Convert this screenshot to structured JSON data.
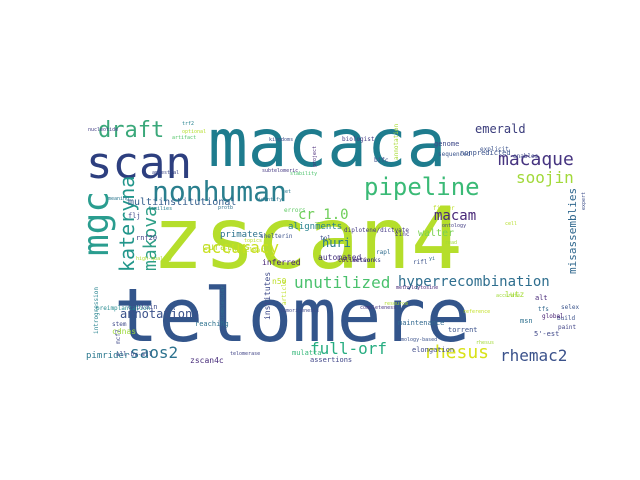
{
  "cloud": {
    "words": [
      {
        "text": "zscan4",
        "color": "#b5de2b"
      },
      {
        "text": "macaca",
        "color": "#1e7c8e"
      },
      {
        "text": "telomere",
        "color": "#33558b"
      },
      {
        "text": "scan",
        "color": "#2d3f7f"
      },
      {
        "text": "mgc",
        "color": "#2a9d8f"
      },
      {
        "text": "nonhuman",
        "color": "#2a7f8e"
      },
      {
        "text": "pipeline",
        "color": "#3aba76"
      },
      {
        "text": "draft",
        "color": "#3aa87a"
      },
      {
        "text": "makova",
        "color": "#2f9f87"
      },
      {
        "text": "kateryna",
        "color": "#22968b"
      },
      {
        "text": "macaque",
        "color": "#463480"
      },
      {
        "text": "soojin",
        "color": "#a2d93a"
      },
      {
        "text": "emerald",
        "color": "#3b3d7c"
      },
      {
        "text": "misassemblies",
        "color": "#31688e"
      },
      {
        "text": "accuracy",
        "color": "#c9e020"
      },
      {
        "text": "full-orf",
        "color": "#27ad81"
      },
      {
        "text": "rhesus",
        "color": "#d8e219"
      },
      {
        "text": "rhemac2",
        "color": "#3b528b"
      },
      {
        "text": "saos2",
        "color": "#2c728e"
      },
      {
        "text": "unutilized",
        "color": "#4ac16d"
      },
      {
        "text": "hyperrecombination",
        "color": "#2e6e8e"
      },
      {
        "text": "macam",
        "color": "#482878"
      },
      {
        "text": "huri",
        "color": "#2a798e"
      },
      {
        "text": "cr_1.0",
        "color": "#6ece58"
      },
      {
        "text": "annotations",
        "color": "#3b528b"
      },
      {
        "text": "curators",
        "color": "#b8de29"
      },
      {
        "text": "multiinstitutional",
        "color": "#355f8d"
      },
      {
        "text": "primates",
        "color": "#2c728e"
      },
      {
        "text": "alignments",
        "color": "#26828e"
      },
      {
        "text": "walter",
        "color": "#7ad151"
      },
      {
        "text": "automated",
        "color": "#46327e"
      },
      {
        "text": "zscan4c",
        "color": "#472c7a"
      },
      {
        "text": "pimrider",
        "color": "#2a788e"
      },
      {
        "text": "cdnas",
        "color": "#9dd93b"
      },
      {
        "text": "inferred",
        "color": "#482475"
      },
      {
        "text": "institutes",
        "color": "#3e4a89"
      },
      {
        "text": "n50",
        "color": "#bddf26"
      },
      {
        "text": "explain",
        "color": "#3e4c8a"
      },
      {
        "text": "reaching",
        "color": "#2d718e"
      },
      {
        "text": "assertions",
        "color": "#404688"
      },
      {
        "text": "mulatta",
        "color": "#35b779"
      },
      {
        "text": "elongation",
        "color": "#3e4989"
      },
      {
        "text": "maintenance",
        "color": "#31688e"
      },
      {
        "text": "torrent",
        "color": "#3b528b"
      },
      {
        "text": "collection",
        "color": "#471365"
      },
      {
        "text": "diplotene/dictyate",
        "color": "#443983"
      },
      {
        "text": "networks",
        "color": "#414487"
      },
      {
        "text": "5'-est",
        "color": "#3f4788"
      },
      {
        "text": "lutz",
        "color": "#a5db36"
      },
      {
        "text": "alt",
        "color": "#482979"
      },
      {
        "text": "msn",
        "color": "#2d708e"
      },
      {
        "text": "genome",
        "color": "#3e4989"
      },
      {
        "text": "nonpredicted",
        "color": "#3b528b"
      },
      {
        "text": "biologist",
        "color": "#443a83"
      },
      {
        "text": "stability",
        "color": "#4cc26c"
      },
      {
        "text": "flj",
        "color": "#3f4788"
      },
      {
        "text": "rnf20",
        "color": "#414487"
      },
      {
        "text": "errors",
        "color": "#5ec962"
      },
      {
        "text": "zinc",
        "color": "#453781"
      },
      {
        "text": "rapl",
        "color": "#2f6c8e"
      },
      {
        "text": "yi",
        "color": "#2f6b8e"
      },
      {
        "text": "rifl",
        "color": "#3b528b"
      },
      {
        "text": "build",
        "color": "#3b518b"
      },
      {
        "text": "paint",
        "color": "#414487"
      },
      {
        "text": "global",
        "color": "#482173"
      },
      {
        "text": "tfs",
        "color": "#31688e"
      },
      {
        "text": "selex",
        "color": "#3a538b"
      },
      {
        "text": "enables",
        "color": "#3f4889"
      },
      {
        "text": "bifc",
        "color": "#3d4d8a"
      },
      {
        "text": "explicit",
        "color": "#3b528b"
      },
      {
        "text": "sequenced",
        "color": "#3a548c"
      },
      {
        "text": "finger",
        "color": "#bddf26"
      },
      {
        "text": "expert",
        "color": "#3d4e8a"
      },
      {
        "text": "methylcytosine",
        "color": "#482677"
      },
      {
        "text": "nucleotide",
        "color": "#433e85"
      },
      {
        "text": "trf2",
        "color": "#26828e"
      },
      {
        "text": "optional",
        "color": "#b5de2b"
      },
      {
        "text": "artifact",
        "color": "#54c568"
      },
      {
        "text": "kingdoms",
        "color": "#3d4e8a"
      },
      {
        "text": "project",
        "color": "#482878"
      },
      {
        "text": "annotation",
        "color": "#a8db34"
      },
      {
        "text": "subtelomeric",
        "color": "#453882"
      },
      {
        "text": "stem",
        "color": "#3e4989"
      },
      {
        "text": "mcf7",
        "color": "#3e4989"
      },
      {
        "text": "introgression",
        "color": "#26828e"
      },
      {
        "text": "preimplantation",
        "color": "#23898e"
      },
      {
        "text": "all-by-all",
        "color": "#3e4a89"
      },
      {
        "text": "telomerase",
        "color": "#414487"
      },
      {
        "text": "cytonuclear",
        "color": "#c0df25"
      },
      {
        "text": "accurate",
        "color": "#a0da39"
      },
      {
        "text": "rhesus",
        "color": "#a2da37"
      },
      {
        "text": "reference",
        "color": "#c2df23"
      },
      {
        "text": "resource",
        "color": "#b2dd2d"
      },
      {
        "text": "homology-based",
        "color": "#3b528b"
      },
      {
        "text": "completeness",
        "color": "#463480"
      },
      {
        "text": "biomolecular",
        "color": "#2d708e"
      },
      {
        "text": "high-quality",
        "color": "#b0dd2f"
      },
      {
        "text": "meaning",
        "color": "#2a768e"
      },
      {
        "text": "topics",
        "color": "#bddf26"
      },
      {
        "text": "shelterin",
        "color": "#3b528b"
      },
      {
        "text": "article",
        "color": "#bddf26"
      },
      {
        "text": "tumorigenesis",
        "color": "#3e4989"
      },
      {
        "text": "protb",
        "color": "#2e6f8e"
      },
      {
        "text": "cell",
        "color": "#b5de2b"
      },
      {
        "text": "read",
        "color": "#a2da37"
      },
      {
        "text": "ontology",
        "color": "#433d84"
      },
      {
        "text": "ancestral",
        "color": "#3e4a89"
      },
      {
        "text": "families",
        "color": "#26818e"
      },
      {
        "text": "identify",
        "color": "#2c738e"
      },
      {
        "text": "set",
        "color": "#2a788e"
      },
      {
        "text": "tol",
        "color": "#3e4a89"
      }
    ]
  }
}
